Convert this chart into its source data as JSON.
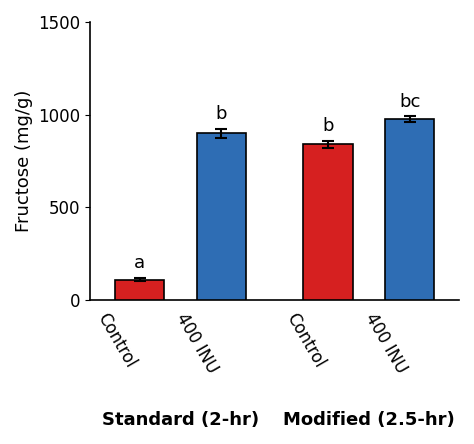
{
  "bar_labels": [
    "Control",
    "400 INU",
    "Control",
    "400 INU"
  ],
  "values": [
    110,
    900,
    840,
    975
  ],
  "errors": [
    10,
    25,
    20,
    15
  ],
  "bar_colors": [
    "#D62020",
    "#2E6DB4",
    "#D62020",
    "#2E6DB4"
  ],
  "stat_labels": [
    "a",
    "b",
    "b",
    "bc"
  ],
  "ylabel": "Fructose (mg/g)",
  "ylim": [
    0,
    1500
  ],
  "yticks": [
    0,
    500,
    1000,
    1500
  ],
  "group_label_1": "Standard (2-hr)",
  "group_label_2": "Modified (2.5-hr)",
  "bar_edge_color": "#000000",
  "error_color": "#000000",
  "bar_width": 0.6,
  "axis_fontsize": 13,
  "tick_fontsize": 12,
  "stat_fontsize": 13,
  "group_label_fontsize": 13
}
